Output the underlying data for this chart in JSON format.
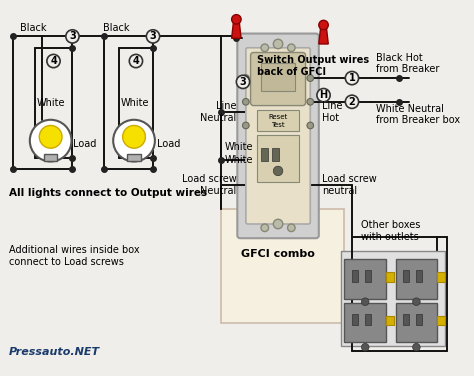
{
  "bg_color": "#f0eeea",
  "watermark": "Pressauto.NET",
  "watermark_color": "#1a3a6b",
  "labels": {
    "switch_output": "Switch Output wires\nback of GFCI",
    "line_neutral": "Line\nNeutral",
    "line_hot": "Line\nHot",
    "black_hot": "Black Hot\nfrom Breaker",
    "white_neutral": "White Neutral\nfrom Breaker box",
    "load_screw_left": "Load screw\nNeutral",
    "load_screw_right": "Load screw\nneutral",
    "gfci_combo": "GFCI combo",
    "all_lights": "All lights connect to Output wires",
    "additional_wires": "Additional wires inside box\nconnect to Load screws",
    "other_boxes": "Other boxes\nwith outlets",
    "reset": "Reset",
    "test": "Test",
    "black1": "Black",
    "white1": "White",
    "load1": "Load",
    "black2": "Black",
    "white2": "White",
    "load2": "Load"
  },
  "gfci_body_color": "#e8e0c8",
  "gfci_bracket_color": "#d0d0d0",
  "outlet_color": "#888888",
  "outlet_bg_color": "#aaaaaa",
  "yellow_color": "#d4b000",
  "red_color": "#cc1111",
  "wire_black": "#111111",
  "circle_bg": "#f0eeea",
  "circle_ec": "#333333",
  "dot_color": "#222222"
}
